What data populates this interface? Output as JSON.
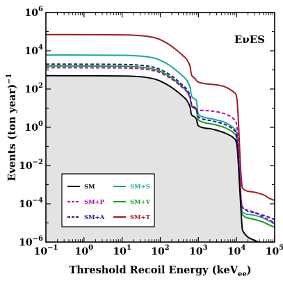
{
  "chart_data": {
    "type": "line",
    "title": "",
    "annotation": "EνES",
    "xlabel": "Threshold Recoil Energy (keV",
    "xlabel_sub": "ee",
    "xlabel_close": ")",
    "ylabel": "Events (ton year)",
    "ylabel_sup": "−1",
    "x_scale": "log",
    "y_scale": "log",
    "xlim": [
      0.1,
      100000
    ],
    "ylim": [
      1e-06,
      1000000
    ],
    "x_ticks": [
      {
        "base": "10",
        "exp": "−1",
        "value": 0.1
      },
      {
        "base": "10",
        "exp": "0",
        "value": 1
      },
      {
        "base": "10",
        "exp": "1",
        "value": 10
      },
      {
        "base": "10",
        "exp": "2",
        "value": 100
      },
      {
        "base": "10",
        "exp": "3",
        "value": 1000
      },
      {
        "base": "10",
        "exp": "4",
        "value": 10000
      },
      {
        "base": "10",
        "exp": "5",
        "value": 100000
      }
    ],
    "y_ticks": [
      {
        "base": "10",
        "exp": "−6",
        "value": 1e-06
      },
      {
        "base": "10",
        "exp": "−4",
        "value": 0.0001
      },
      {
        "base": "10",
        "exp": "−2",
        "value": 0.01
      },
      {
        "base": "10",
        "exp": "0",
        "value": 1
      },
      {
        "base": "10",
        "exp": "2",
        "value": 100
      },
      {
        "base": "10",
        "exp": "4",
        "value": 10000
      },
      {
        "base": "10",
        "exp": "6",
        "value": 1000000
      }
    ],
    "legend_position": "bottom-left",
    "x": [
      0.1,
      1,
      10,
      30,
      60,
      100,
      200,
      400,
      500,
      600,
      650,
      700,
      800,
      900,
      1000,
      1500,
      2000,
      3000,
      5000,
      8000,
      10000,
      11000,
      12000,
      13000,
      14000,
      15000,
      17000,
      20000,
      30000,
      50000,
      70000,
      100000
    ],
    "series": [
      {
        "name": "SM",
        "color": "#000000",
        "dash": "solid",
        "fill": true,
        "values": [
          500,
          495,
          480,
          440,
          360,
          260,
          120,
          40,
          25,
          12,
          5,
          4,
          3.5,
          2.5,
          1.2,
          0.9,
          0.85,
          0.7,
          0.5,
          0.3,
          0.15,
          0.02,
          0.001,
          6e-05,
          6e-06,
          3.5e-06,
          2.5e-06,
          1.8e-06,
          1.2e-06,
          8e-07,
          6e-07,
          3e-07
        ]
      },
      {
        "name": "SM+P",
        "color": "#b200b2",
        "dash": "dashed",
        "values": [
          1300,
          1290,
          1260,
          1150,
          950,
          700,
          330,
          110,
          70,
          35,
          15,
          12,
          11,
          9,
          8,
          7.5,
          7.2,
          6.5,
          5,
          3,
          1.5,
          0.2,
          0.008,
          0.0003,
          8e-05,
          6e-05,
          5e-05,
          4.5e-05,
          3.5e-05,
          2e-05,
          1.5e-05,
          1e-05
        ]
      },
      {
        "name": "SM+A",
        "color": "#1a1a9e",
        "dash": "dashed",
        "values": [
          2000,
          1980,
          1930,
          1750,
          1450,
          1050,
          480,
          150,
          95,
          45,
          18,
          13,
          11,
          8,
          3.5,
          2.5,
          2.3,
          1.9,
          1.4,
          0.8,
          0.4,
          0.05,
          0.003,
          0.0002,
          7e-05,
          6e-05,
          5e-05,
          4e-05,
          3.5e-05,
          2.5e-05,
          2e-05,
          1.5e-05
        ]
      },
      {
        "name": "SM+S",
        "color": "#1aa6a6",
        "dash": "solid",
        "values": [
          6000,
          5950,
          5800,
          5300,
          4400,
          3200,
          1450,
          450,
          280,
          130,
          50,
          36,
          30,
          22,
          5,
          3.2,
          2.9,
          2.4,
          1.8,
          1.0,
          0.5,
          0.06,
          0.003,
          0.00015,
          4e-05,
          3.5e-05,
          3e-05,
          2.8e-05,
          2.5e-05,
          1.8e-05,
          1.3e-05,
          9e-06
        ]
      },
      {
        "name": "SM+V",
        "color": "#1a9e1a",
        "dash": "solid",
        "values": [
          1600,
          1590,
          1550,
          1400,
          1150,
          840,
          380,
          120,
          75,
          36,
          15,
          11,
          9.5,
          7,
          2.5,
          1.7,
          1.55,
          1.3,
          0.95,
          0.55,
          0.28,
          0.035,
          0.002,
          0.0001,
          3e-05,
          2.5e-05,
          2e-05,
          1.8e-05,
          1.5e-05,
          1.1e-05,
          8e-06,
          6e-06
        ]
      },
      {
        "name": "SM+T",
        "color": "#a31a1a",
        "dash": "solid",
        "values": [
          70000,
          69500,
          68000,
          62000,
          52000,
          38000,
          17000,
          5400,
          3400,
          1600,
          620,
          450,
          370,
          270,
          230,
          190,
          180,
          165,
          130,
          75,
          40,
          4,
          0.1,
          0.004,
          0.0008,
          0.0006,
          0.0005,
          0.00045,
          0.0004,
          0.0003,
          0.0002,
          0.00015
        ]
      }
    ]
  }
}
